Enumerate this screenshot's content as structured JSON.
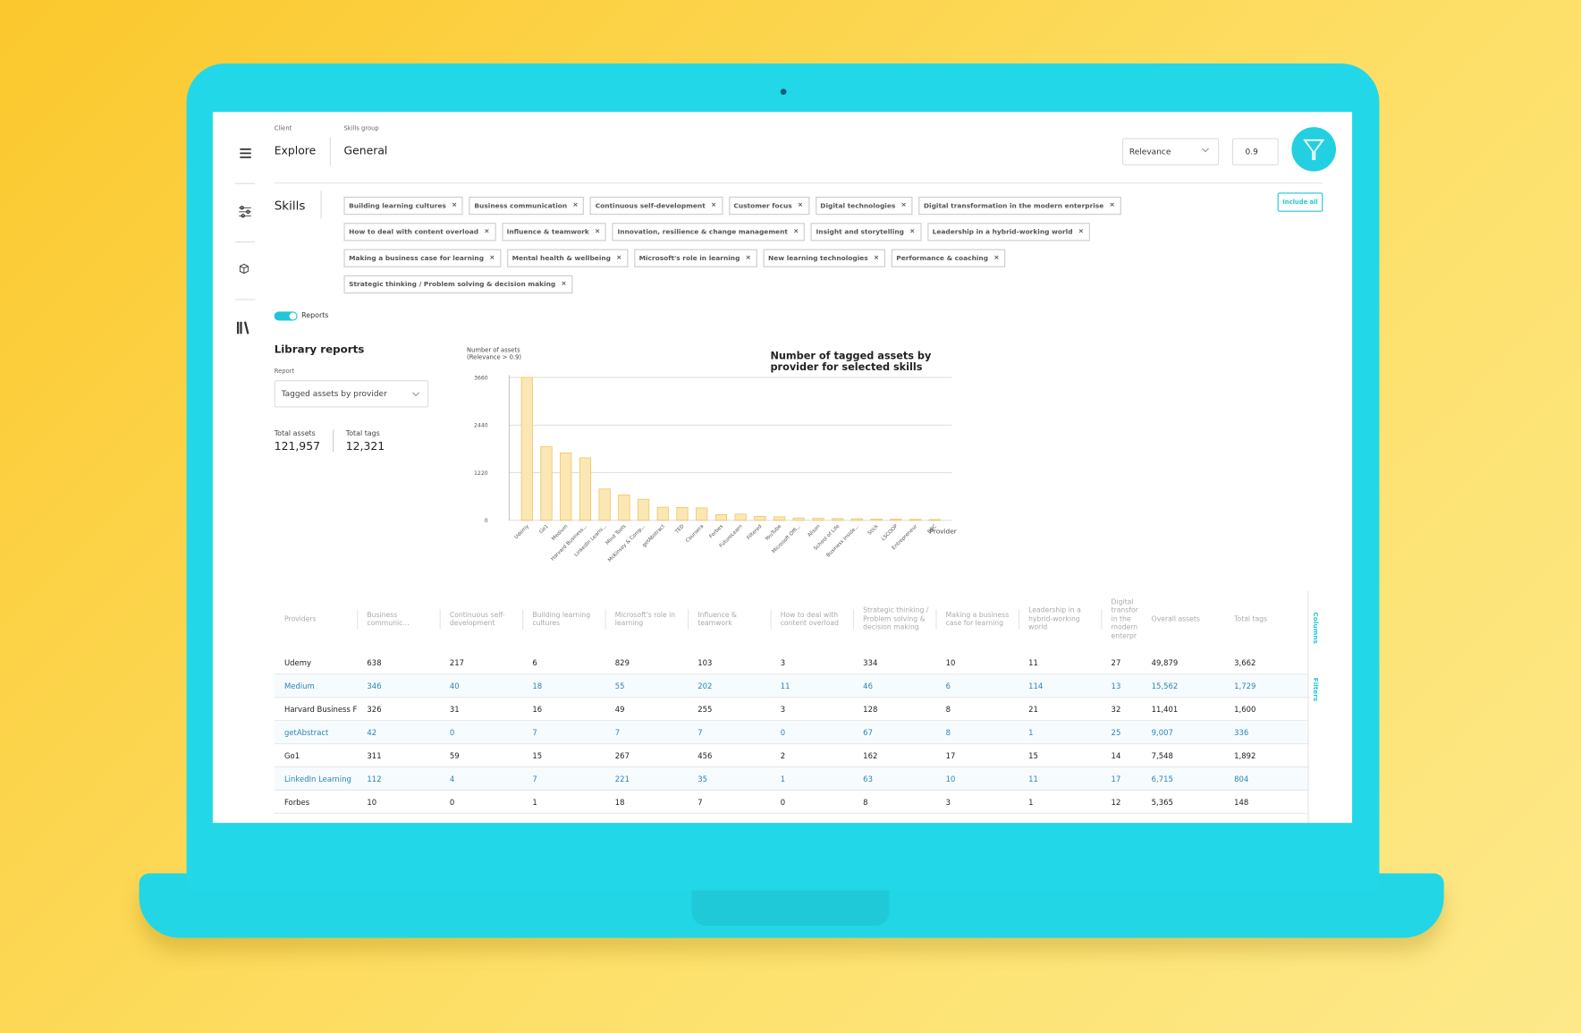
{
  "header": {
    "client_label": "Client",
    "client": "Explore",
    "group_label": "Skills group",
    "group": "General",
    "sort": "Relevance",
    "threshold": "0.9"
  },
  "skills": {
    "label": "Skills",
    "include_all": "Include all",
    "tags": [
      "Building learning cultures",
      "Business communication",
      "Continuous self-development",
      "Customer focus",
      "Digital technologies",
      "Digital transformation in the modern enterprise",
      "How to deal with content overload",
      "Influence & teamwork",
      "Innovation, resilience & change management",
      "Insight and storytelling",
      "Leadership in a hybrid-working world",
      "Making a business case for learning",
      "Mental health & wellbeing",
      "Microsoft's role in learning",
      "New learning technologies",
      "Performance & coaching",
      "Strategic thinking / Problem solving & decision making"
    ]
  },
  "toggle": {
    "label": "Reports"
  },
  "library": {
    "title": "Library reports",
    "report_label": "Report",
    "report": "Tagged assets by provider",
    "total_assets_label": "Total assets",
    "total_assets": "121,957",
    "total_tags_label": "Total tags",
    "total_tags": "12,321"
  },
  "chart_data": {
    "type": "bar",
    "title": "Number of tagged assets by provider for selected skills",
    "y_label": "Number of assets (Relevance > 0.9)",
    "x_label": "Provider",
    "categories": [
      "Udemy",
      "Go1",
      "Medium",
      "Harvard Business...",
      "LinkedIn Learni...",
      "Mind Tools",
      "McKinsey & Comp...",
      "getAbstract",
      "TED",
      "Coursera",
      "Forbes",
      "FutureLearn",
      "Filtered",
      "YouTube",
      "Microsoft Offi...",
      "Alison",
      "School of Life",
      "Business Inside...",
      "Stick",
      "LSCOOP",
      "Entrepreneur",
      "BBC"
    ],
    "values": [
      3662,
      1892,
      1729,
      1600,
      804,
      650,
      540,
      336,
      330,
      320,
      148,
      160,
      100,
      90,
      60,
      50,
      45,
      40,
      35,
      30,
      25,
      20
    ],
    "color": "#fbe7b4",
    "ylim": [
      0,
      3720
    ],
    "yticks": [
      0,
      1220,
      2440,
      3660
    ],
    "grid": true
  },
  "table": {
    "headers": [
      "Providers",
      "Business communic...",
      "Continuous self-development",
      "Building learning cultures",
      "Microsoft's role in learning",
      "Influence & teamwork",
      "How to deal with content overload",
      "Strategic thinking / Problem solving & decision making",
      "Making a business case for learning",
      "Leadership in a hybrid-working world",
      "Digital transfor in the modern enterpr",
      "Overall assets",
      "Total tags"
    ],
    "rows": [
      [
        "Udemy",
        "638",
        "217",
        "6",
        "829",
        "103",
        "3",
        "334",
        "10",
        "11",
        "27",
        "49,879",
        "3,662"
      ],
      [
        "Medium",
        "346",
        "40",
        "18",
        "55",
        "202",
        "11",
        "46",
        "6",
        "114",
        "13",
        "15,562",
        "1,729"
      ],
      [
        "Harvard Business F",
        "326",
        "31",
        "16",
        "49",
        "255",
        "3",
        "128",
        "8",
        "21",
        "32",
        "11,401",
        "1,600"
      ],
      [
        "getAbstract",
        "42",
        "0",
        "7",
        "7",
        "7",
        "0",
        "67",
        "8",
        "1",
        "25",
        "9,007",
        "336"
      ],
      [
        "Go1",
        "311",
        "59",
        "15",
        "267",
        "456",
        "2",
        "162",
        "17",
        "15",
        "14",
        "7,548",
        "1,892"
      ],
      [
        "LinkedIn Learning",
        "112",
        "4",
        "7",
        "221",
        "35",
        "1",
        "63",
        "10",
        "11",
        "17",
        "6,715",
        "804"
      ],
      [
        "Forbes",
        "10",
        "0",
        "1",
        "18",
        "7",
        "0",
        "8",
        "3",
        "1",
        "12",
        "5,365",
        "148"
      ]
    ],
    "side_tabs": [
      "Columns",
      "Filters"
    ]
  }
}
